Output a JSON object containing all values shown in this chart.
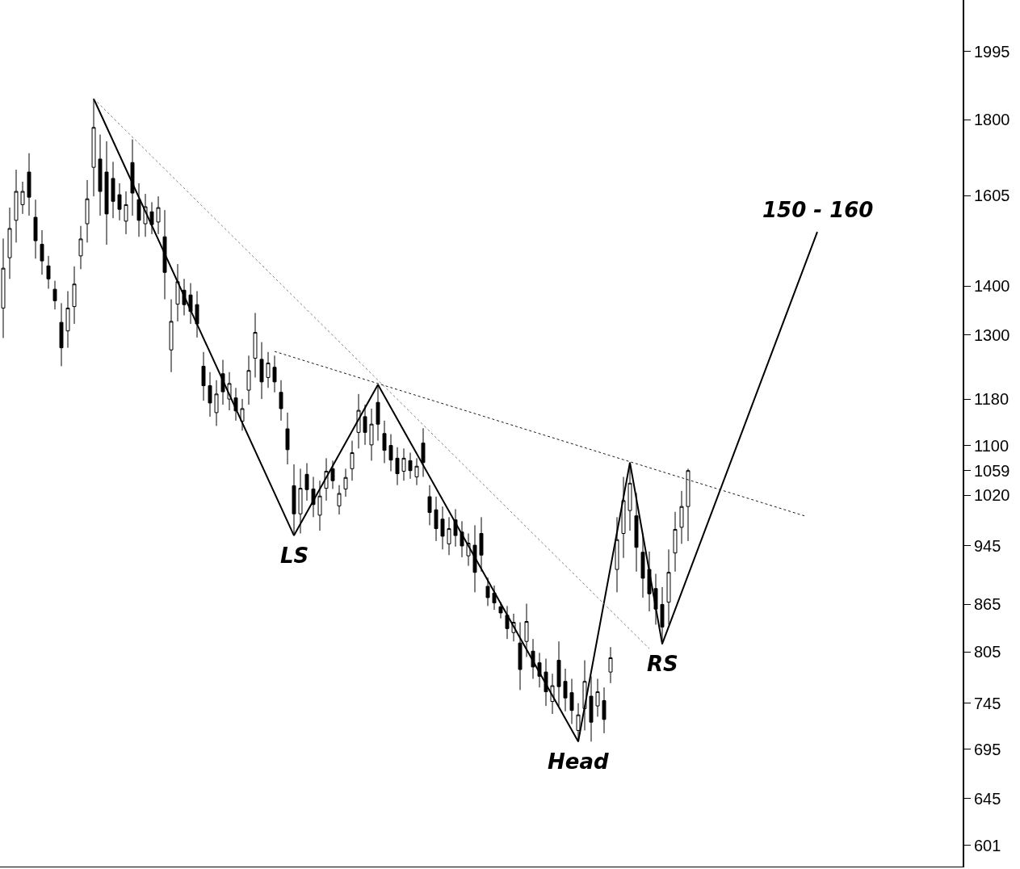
{
  "chart_data": {
    "type": "candlestick",
    "categories": [
      null,
      null,
      null,
      null,
      null,
      null,
      null,
      null,
      null,
      null,
      null,
      null,
      null,
      null,
      null,
      null,
      null,
      null,
      null,
      null,
      null,
      null,
      null,
      null,
      null,
      null,
      null,
      null,
      null,
      null,
      null,
      null,
      null,
      null,
      null,
      null,
      null,
      null,
      null,
      null,
      null,
      null,
      null,
      null,
      null,
      null,
      null,
      null,
      null,
      null,
      null,
      null,
      null,
      null,
      null,
      null,
      null,
      null,
      null,
      null,
      null,
      null,
      null,
      null,
      null,
      null,
      null,
      null,
      null,
      null,
      null,
      null,
      null,
      null,
      null,
      null,
      null,
      null,
      null,
      null,
      null,
      null,
      null,
      null,
      null,
      null,
      null,
      null,
      null,
      null,
      null,
      null,
      null,
      null,
      null,
      null,
      null,
      null,
      null,
      null,
      null,
      null,
      null,
      null,
      null,
      null,
      null,
      null,
      null,
      null,
      null,
      null,
      null,
      null,
      null,
      null,
      null,
      null,
      null,
      null,
      null,
      null,
      null,
      null,
      null,
      null,
      null,
      null,
      null,
      null,
      null,
      null,
      null,
      null,
      null,
      null,
      null,
      null,
      null,
      null,
      null,
      null,
      null,
      null,
      null,
      null,
      null,
      null,
      null
    ],
    "ohlc": [
      [
        1354,
        1504,
        1294,
        1438
      ],
      [
        1461,
        1576,
        1415,
        1527
      ],
      [
        1546,
        1669,
        1495,
        1615
      ],
      [
        1583,
        1639,
        1561,
        1615
      ],
      [
        1663,
        1711,
        1557,
        1601
      ],
      [
        1553,
        1595,
        1459,
        1499
      ],
      [
        1491,
        1523,
        1424,
        1454
      ],
      [
        1443,
        1465,
        1394,
        1415
      ],
      [
        1393,
        1411,
        1351,
        1369
      ],
      [
        1325,
        1364,
        1240,
        1275
      ],
      [
        1308,
        1389,
        1275,
        1354
      ],
      [
        1357,
        1442,
        1322,
        1404
      ],
      [
        1465,
        1533,
        1436,
        1503
      ],
      [
        1538,
        1643,
        1495,
        1597
      ],
      [
        1675,
        1858,
        1603,
        1779
      ],
      [
        1696,
        1760,
        1557,
        1615
      ],
      [
        1663,
        1742,
        1490,
        1561
      ],
      [
        1647,
        1689,
        1551,
        1591
      ],
      [
        1607,
        1635,
        1546,
        1572
      ],
      [
        1544,
        1615,
        1514,
        1583
      ],
      [
        1687,
        1747,
        1557,
        1611
      ],
      [
        1595,
        1635,
        1508,
        1546
      ],
      [
        1538,
        1609,
        1508,
        1578
      ],
      [
        1566,
        1589,
        1514,
        1536
      ],
      [
        1542,
        1603,
        1514,
        1576
      ],
      [
        1508,
        1570,
        1372,
        1429
      ],
      [
        1271,
        1372,
        1229,
        1327
      ],
      [
        1362,
        1447,
        1327,
        1409
      ],
      [
        1391,
        1415,
        1339,
        1361
      ],
      [
        1381,
        1406,
        1322,
        1347
      ],
      [
        1361,
        1389,
        1295,
        1322
      ],
      [
        1240,
        1267,
        1177,
        1204
      ],
      [
        1204,
        1229,
        1149,
        1173
      ],
      [
        1156,
        1214,
        1133,
        1189
      ],
      [
        1226,
        1252,
        1170,
        1193
      ],
      [
        1180,
        1229,
        1160,
        1208
      ],
      [
        1182,
        1200,
        1142,
        1159
      ],
      [
        1141,
        1180,
        1125,
        1163
      ],
      [
        1196,
        1260,
        1170,
        1232
      ],
      [
        1255,
        1344,
        1219,
        1305
      ],
      [
        1253,
        1286,
        1180,
        1211
      ],
      [
        1219,
        1267,
        1200,
        1246
      ],
      [
        1238,
        1260,
        1192,
        1211
      ],
      [
        1192,
        1214,
        1142,
        1163
      ],
      [
        1128,
        1156,
        1069,
        1093
      ],
      [
        1035,
        1069,
        961,
        992
      ],
      [
        992,
        1062,
        963,
        1031
      ],
      [
        1053,
        1071,
        1012,
        1029
      ],
      [
        1030,
        1049,
        987,
        1006
      ],
      [
        990,
        1043,
        967,
        1019
      ],
      [
        1031,
        1079,
        1012,
        1058
      ],
      [
        1062,
        1075,
        1030,
        1043
      ],
      [
        1004,
        1036,
        991,
        1023
      ],
      [
        1030,
        1062,
        1018,
        1048
      ],
      [
        1062,
        1108,
        1043,
        1088
      ],
      [
        1122,
        1189,
        1095,
        1160
      ],
      [
        1149,
        1170,
        1101,
        1122
      ],
      [
        1101,
        1163,
        1075,
        1136
      ],
      [
        1174,
        1204,
        1108,
        1136
      ],
      [
        1120,
        1142,
        1071,
        1092
      ],
      [
        1100,
        1119,
        1058,
        1076
      ],
      [
        1079,
        1097,
        1036,
        1054
      ],
      [
        1058,
        1095,
        1043,
        1079
      ],
      [
        1075,
        1088,
        1046,
        1059
      ],
      [
        1049,
        1079,
        1036,
        1066
      ],
      [
        1104,
        1129,
        1049,
        1072
      ],
      [
        1018,
        1036,
        975,
        994
      ],
      [
        998,
        1018,
        952,
        970
      ],
      [
        984,
        1003,
        940,
        959
      ],
      [
        948,
        987,
        932,
        970
      ],
      [
        983,
        999,
        944,
        960
      ],
      [
        965,
        981,
        929,
        945
      ],
      [
        931,
        963,
        917,
        949
      ],
      [
        946,
        975,
        881,
        908
      ],
      [
        963,
        987,
        909,
        932
      ],
      [
        889,
        901,
        863,
        874
      ],
      [
        880,
        890,
        858,
        867
      ],
      [
        862,
        868,
        847,
        854
      ],
      [
        851,
        863,
        821,
        834
      ],
      [
        829,
        853,
        818,
        842
      ],
      [
        816,
        842,
        760,
        784
      ],
      [
        818,
        866,
        799,
        843
      ],
      [
        806,
        821,
        773,
        787
      ],
      [
        792,
        804,
        763,
        776
      ],
      [
        781,
        797,
        742,
        758
      ],
      [
        747,
        779,
        733,
        765
      ],
      [
        795,
        818,
        742,
        764
      ],
      [
        770,
        785,
        736,
        751
      ],
      [
        757,
        773,
        722,
        737
      ],
      [
        715,
        745,
        703,
        732
      ],
      [
        739,
        795,
        715,
        770
      ],
      [
        753,
        776,
        703,
        724
      ],
      [
        742,
        773,
        730,
        758
      ],
      [
        748,
        763,
        712,
        727
      ],
      [
        781,
        811,
        768,
        798
      ],
      [
        912,
        987,
        881,
        954
      ],
      [
        963,
        1049,
        928,
        1012
      ],
      [
        997,
        1071,
        967,
        1039
      ],
      [
        989,
        1024,
        909,
        943
      ],
      [
        936,
        963,
        874,
        900
      ],
      [
        912,
        937,
        856,
        879
      ],
      [
        886,
        906,
        839,
        859
      ],
      [
        865,
        888,
        814,
        836
      ],
      [
        868,
        940,
        839,
        908
      ],
      [
        935,
        995,
        909,
        969
      ],
      [
        972,
        1027,
        948,
        1003
      ],
      [
        1003,
        1062,
        952,
        1059
      ],
      null,
      null,
      null,
      null,
      null,
      null,
      null,
      null,
      null,
      null,
      null,
      null,
      null,
      null,
      null,
      null,
      null,
      null,
      null,
      null,
      null,
      null,
      null,
      null,
      null,
      null,
      null,
      null,
      null,
      null,
      null,
      null,
      null,
      null,
      null,
      null,
      null,
      null,
      null,
      null,
      null,
      null
    ],
    "color": "#000000",
    "series": [
      {
        "type": "line",
        "color": "#000000",
        "line_style": "solid",
        "values": [
          null,
          null,
          null,
          null,
          null,
          null,
          null,
          null,
          null,
          null,
          null,
          null,
          null,
          null,
          1858,
          null,
          null,
          null,
          null,
          null,
          null,
          null,
          null,
          null,
          null,
          null,
          null,
          null,
          null,
          null,
          null,
          null,
          null,
          null,
          null,
          null,
          null,
          null,
          null,
          null,
          null,
          null,
          null,
          null,
          null,
          960,
          null,
          null,
          null,
          null,
          null,
          null,
          null,
          null,
          null,
          null,
          null,
          null,
          1206,
          null,
          null,
          null,
          null,
          null,
          null,
          null,
          null,
          null,
          null,
          null,
          null,
          null,
          null,
          null,
          null,
          null,
          null,
          null,
          null,
          null,
          null,
          null,
          null,
          null,
          null,
          null,
          null,
          null,
          null,
          703,
          null,
          null,
          null,
          null,
          null,
          null,
          null,
          1072,
          null,
          null,
          null,
          null,
          815,
          null,
          null,
          null,
          null,
          null,
          null,
          null,
          null,
          null,
          null,
          null,
          null,
          null,
          null,
          null,
          null,
          null,
          null,
          null,
          null,
          null,
          null,
          null,
          1519,
          null,
          null,
          null,
          null,
          null,
          null,
          null,
          null,
          null,
          null,
          null,
          null,
          null,
          null,
          null,
          null,
          null,
          null,
          null,
          null,
          null,
          null
        ]
      },
      {
        "type": "line",
        "color": "#808080",
        "line_style": "dotted",
        "values": [
          null,
          null,
          null,
          null,
          null,
          null,
          null,
          null,
          null,
          null,
          null,
          null,
          null,
          null,
          1858,
          null,
          null,
          null,
          null,
          null,
          null,
          null,
          null,
          null,
          null,
          null,
          null,
          null,
          null,
          null,
          null,
          null,
          null,
          null,
          null,
          null,
          null,
          null,
          null,
          null,
          null,
          null,
          null,
          null,
          null,
          null,
          null,
          null,
          null,
          null,
          null,
          null,
          null,
          null,
          null,
          null,
          null,
          null,
          null,
          null,
          null,
          null,
          null,
          null,
          null,
          null,
          null,
          null,
          null,
          null,
          null,
          null,
          null,
          null,
          null,
          null,
          null,
          null,
          null,
          null,
          null,
          null,
          null,
          null,
          null,
          null,
          null,
          null,
          null,
          null,
          null,
          null,
          null,
          null,
          null,
          null,
          null,
          null,
          null,
          null,
          809,
          null,
          null,
          null,
          null,
          null,
          null,
          null,
          null,
          null,
          null,
          null,
          null,
          null,
          null,
          null,
          null,
          null,
          null,
          null,
          null,
          null,
          null,
          null,
          null,
          null,
          null,
          null,
          null,
          null,
          null,
          null,
          null,
          null,
          null,
          null,
          null,
          null,
          null,
          null,
          null,
          null,
          null,
          null,
          null,
          null,
          null,
          null,
          null
        ]
      },
      {
        "type": "line",
        "color": "#1a1a1a",
        "line_style": "dotted",
        "values": [
          null,
          null,
          null,
          null,
          null,
          null,
          null,
          null,
          null,
          null,
          null,
          null,
          null,
          null,
          null,
          null,
          null,
          null,
          null,
          null,
          null,
          null,
          null,
          null,
          null,
          null,
          null,
          null,
          null,
          null,
          null,
          null,
          null,
          null,
          null,
          null,
          null,
          null,
          null,
          null,
          null,
          null,
          1268,
          null,
          null,
          null,
          null,
          null,
          null,
          null,
          null,
          null,
          null,
          null,
          null,
          null,
          null,
          null,
          null,
          null,
          null,
          null,
          null,
          null,
          null,
          null,
          null,
          null,
          null,
          null,
          null,
          null,
          null,
          null,
          null,
          null,
          null,
          null,
          null,
          null,
          null,
          null,
          null,
          null,
          null,
          null,
          null,
          null,
          null,
          null,
          null,
          null,
          null,
          null,
          null,
          null,
          null,
          null,
          null,
          null,
          null,
          null,
          null,
          null,
          null,
          null,
          null,
          null,
          null,
          null,
          null,
          null,
          null,
          null,
          null,
          null,
          null,
          null,
          null,
          null,
          null,
          null,
          null,
          null,
          989,
          null,
          null,
          null,
          null,
          null,
          null,
          null,
          null,
          null,
          null,
          null,
          null,
          null,
          null,
          null,
          null,
          null,
          null,
          null,
          null,
          null,
          null,
          null,
          null
        ]
      }
    ],
    "log": true,
    "ylim": [
      582,
      2157
    ],
    "yticks": [
      1995,
      1800,
      1605,
      1400,
      1300,
      1180,
      1100,
      1059,
      1020,
      945,
      865,
      805,
      745,
      695,
      645,
      601
    ],
    "tick_labels": "y",
    "annotations": [
      {
        "text": "LS",
        "y": 960
      },
      {
        "text": "Head",
        "y": 703
      },
      {
        "text": "RS",
        "y": 815
      },
      {
        "text": "150 - 160",
        "y": 1519
      }
    ]
  }
}
